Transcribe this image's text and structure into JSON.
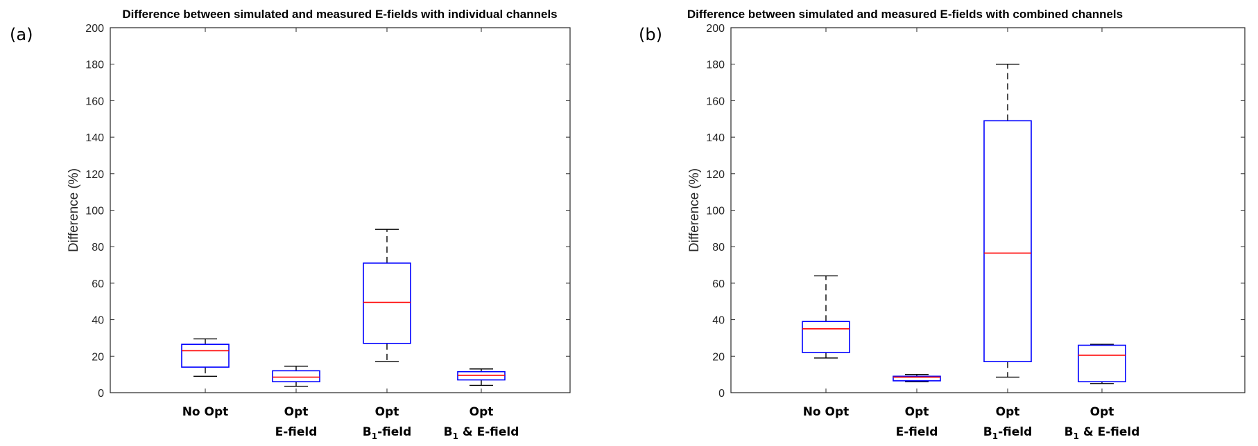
{
  "chart_data": [
    {
      "type": "box",
      "panel_label": "(a)",
      "title": "Difference between simulated and measured E-fields with individual channels",
      "ylabel": "Difference (%)",
      "xlabel": "",
      "ylim": [
        0,
        200
      ],
      "yticks": [
        0,
        20,
        40,
        60,
        80,
        100,
        120,
        140,
        160,
        180,
        200
      ],
      "categories": [
        {
          "line1": "No Opt",
          "line2": "",
          "line2_sub": "",
          "line2_rest": ""
        },
        {
          "line1": "Opt",
          "line2": "E-field",
          "line2_sub": "",
          "line2_rest": ""
        },
        {
          "line1": "Opt",
          "line2": "B",
          "line2_sub": "1",
          "line2_rest": "-field"
        },
        {
          "line1": "Opt",
          "line2": "B",
          "line2_sub": "1",
          "line2_rest": " & E-field"
        }
      ],
      "boxes": [
        {
          "min": 9,
          "q1": 14,
          "median": 23,
          "q3": 26.5,
          "max": 29.5
        },
        {
          "min": 3.5,
          "q1": 6,
          "median": 8.5,
          "q3": 12,
          "max": 14.5
        },
        {
          "min": 17,
          "q1": 27,
          "median": 49.5,
          "q3": 71,
          "max": 89.5
        },
        {
          "min": 4,
          "q1": 7,
          "median": 9.5,
          "q3": 11.5,
          "max": 13
        }
      ]
    },
    {
      "type": "box",
      "panel_label": "(b)",
      "title": "Difference between simulated and measured E-fields with combined channels",
      "ylabel": "Difference (%)",
      "xlabel": "",
      "ylim": [
        0,
        200
      ],
      "yticks": [
        0,
        20,
        40,
        60,
        80,
        100,
        120,
        140,
        160,
        180,
        200
      ],
      "categories": [
        {
          "line1": "No Opt",
          "line2": "",
          "line2_sub": "",
          "line2_rest": ""
        },
        {
          "line1": "Opt",
          "line2": "E-field",
          "line2_sub": "",
          "line2_rest": ""
        },
        {
          "line1": "Opt",
          "line2": "B",
          "line2_sub": "1",
          "line2_rest": "-field"
        },
        {
          "line1": "Opt",
          "line2": "B",
          "line2_sub": "1",
          "line2_rest": " & E-field"
        }
      ],
      "boxes": [
        {
          "min": 19,
          "q1": 22,
          "median": 35,
          "q3": 39,
          "max": 64
        },
        {
          "min": 6,
          "q1": 6.5,
          "median": 8.5,
          "q3": 9,
          "max": 10
        },
        {
          "min": 8.5,
          "q1": 17,
          "median": 76.5,
          "q3": 149,
          "max": 180
        },
        {
          "min": 5,
          "q1": 6,
          "median": 20.5,
          "q3": 26,
          "max": 26.5
        }
      ]
    }
  ],
  "colors": {
    "box": "#0000ff",
    "median": "#ff0000",
    "whisker": "#000000",
    "axis": "#262626"
  }
}
